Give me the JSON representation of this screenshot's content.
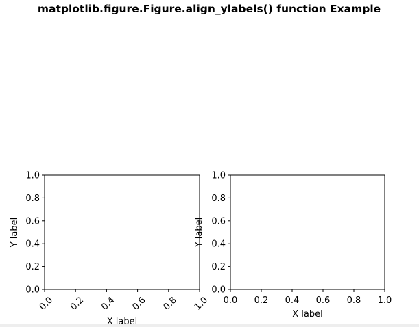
{
  "chart_data": {
    "suptitle": "matplotlib.figure.Figure.align_ylabels() function Example",
    "panels": [
      {
        "type": "scatter",
        "xlabel": "X label",
        "ylabel": "Y label",
        "xlim": [
          0.0,
          1.0
        ],
        "ylim": [
          0.0,
          1.0
        ],
        "xticks": [
          "0.0",
          "0.2",
          "0.4",
          "0.6",
          "0.8",
          "1.0"
        ],
        "yticks": [
          "0.0",
          "0.2",
          "0.4",
          "0.6",
          "0.8",
          "1.0"
        ],
        "xtick_rotation_deg": 45,
        "grid": false,
        "series": []
      },
      {
        "type": "scatter",
        "xlabel": "X label",
        "ylabel": "Y label",
        "xlim": [
          0.0,
          1.0
        ],
        "ylim": [
          0.0,
          1.0
        ],
        "xticks": [
          "0.0",
          "0.2",
          "0.4",
          "0.6",
          "0.8",
          "1.0"
        ],
        "yticks": [
          "0.0",
          "0.2",
          "0.4",
          "0.6",
          "0.8",
          "1.0"
        ],
        "xtick_rotation_deg": 0,
        "grid": false,
        "series": []
      }
    ]
  }
}
